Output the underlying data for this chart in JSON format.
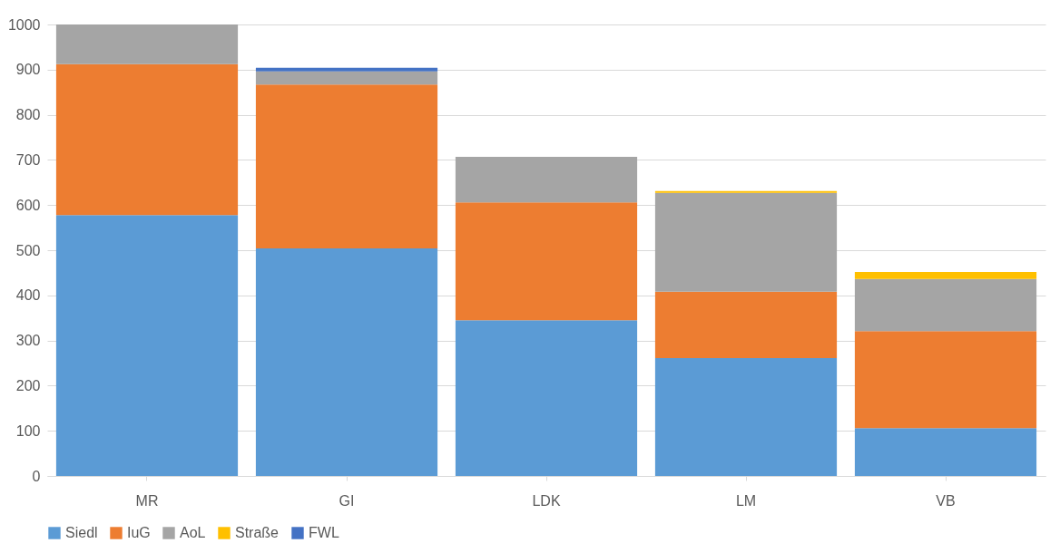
{
  "chart_data": {
    "type": "bar",
    "stacked": true,
    "categories": [
      "MR",
      "GI",
      "LDK",
      "LM",
      "VB"
    ],
    "series": [
      {
        "name": "Siedl",
        "color": "#5b9bd5",
        "values": [
          578,
          504,
          345,
          261,
          106
        ]
      },
      {
        "name": "IuG",
        "color": "#ed7d31",
        "values": [
          334,
          363,
          261,
          147,
          215
        ]
      },
      {
        "name": "AoL",
        "color": "#a5a5a5",
        "values": [
          88,
          29,
          101,
          219,
          115
        ]
      },
      {
        "name": "Straße",
        "color": "#ffc000",
        "values": [
          null,
          null,
          null,
          4,
          16
        ]
      },
      {
        "name": "FWL",
        "color": "#4472c4",
        "values": [
          null,
          8,
          null,
          null,
          null
        ]
      }
    ],
    "ylim": [
      0,
      1000
    ],
    "yticks": [
      0,
      100,
      200,
      300,
      400,
      500,
      600,
      700,
      800,
      900,
      1000
    ],
    "grid": "y",
    "legend": "bottom"
  }
}
